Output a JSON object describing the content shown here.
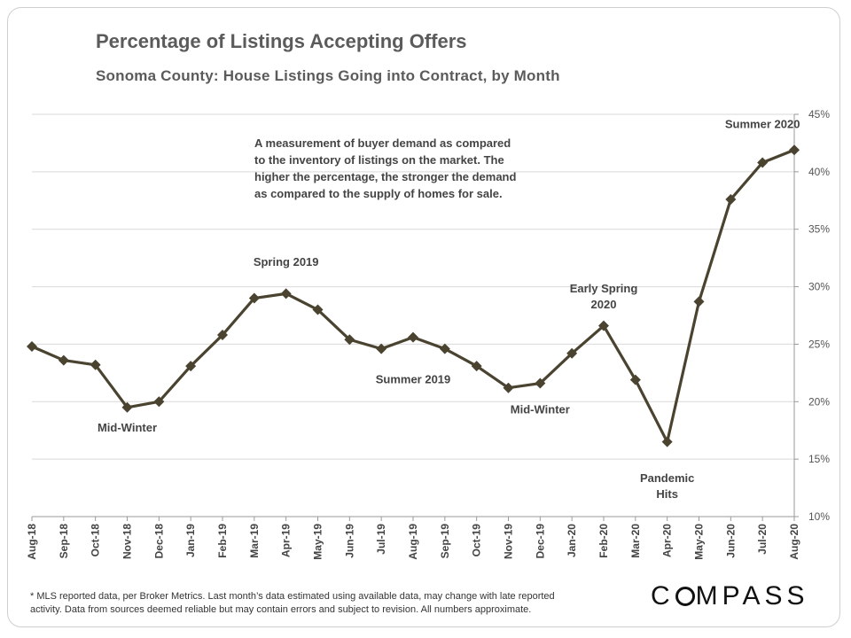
{
  "chart_data": {
    "type": "line",
    "title": "Percentage of Listings Accepting Offers",
    "subtitle": "Sonoma County: House Listings Going into Contract, by Month",
    "categories": [
      "Aug-18",
      "Sep-18",
      "Oct-18",
      "Nov-18",
      "Dec-18",
      "Jan-19",
      "Feb-19",
      "Mar-19",
      "Apr-19",
      "May-19",
      "Jun-19",
      "Jul-19",
      "Aug-19",
      "Sep-19",
      "Oct-19",
      "Nov-19",
      "Dec-19",
      "Jan-20",
      "Feb-20",
      "Mar-20",
      "Apr-20",
      "May-20",
      "Jun-20",
      "Jul-20",
      "Aug-20"
    ],
    "series": [
      {
        "values": [
          24.8,
          23.6,
          23.2,
          19.5,
          20.0,
          23.1,
          25.8,
          29.0,
          29.4,
          28.0,
          25.4,
          24.6,
          25.6,
          24.6,
          23.1,
          21.2,
          21.6,
          24.2,
          26.6,
          21.9,
          16.5,
          28.7,
          37.6,
          40.8,
          41.9
        ],
        "color": "#4a4330"
      }
    ],
    "ylim": [
      10,
      45
    ],
    "yticks": [
      10,
      15,
      20,
      25,
      30,
      35,
      40,
      45
    ],
    "ytick_labels": [
      "10%",
      "15%",
      "20%",
      "25%",
      "30%",
      "35%",
      "40%",
      "45%"
    ],
    "y_axis_side": "right",
    "grid": "horizontal",
    "annotations": [
      {
        "text": "Mid-Winter",
        "x": "Nov-18",
        "y": 17.4
      },
      {
        "text": "Spring 2019",
        "x": "Apr-19",
        "y": 31.8
      },
      {
        "text": "Summer 2019",
        "x": "Aug-19",
        "y": 21.6
      },
      {
        "text": "Mid-Winter",
        "x": "Dec-19",
        "y": 19.0
      },
      {
        "text": "Early Spring 2020",
        "x": "Feb-20",
        "y": 29.5
      },
      {
        "text": "Pandemic Hits",
        "x": "Apr-20",
        "y": 13.0
      },
      {
        "text": "Summer 2020",
        "x": "Jul-20",
        "y": 43.8
      }
    ],
    "note": {
      "lines": [
        "A measurement of buyer demand as compared",
        "to the inventory of listings on the market. The",
        "higher the percentage, the stronger the demand",
        "as compared to the supply of homes for sale."
      ]
    }
  },
  "footnote": {
    "line1": "* MLS reported data, per Broker Metrics. Last month’s data estimated using available data, may change with late reported",
    "line2": "activity. Data from sources deemed reliable but may contain errors and subject to revision. All numbers approximate."
  },
  "logo": {
    "text": "COMPASS"
  }
}
